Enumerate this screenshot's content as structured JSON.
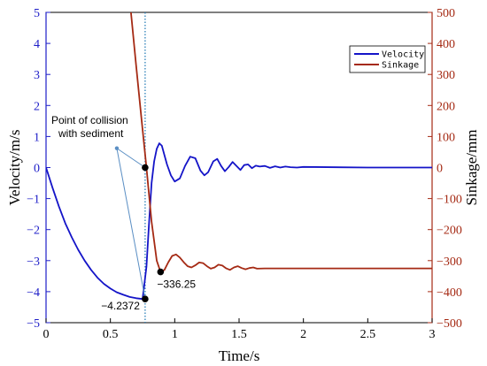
{
  "chart_data": {
    "type": "line",
    "xlabel": "Time/s",
    "ylabel_left": "Velocity/m/s",
    "ylabel_right": "Sinkage/mm",
    "xlim": [
      0,
      3
    ],
    "ylim_left": [
      -5,
      5
    ],
    "ylim_right": [
      -500,
      500
    ],
    "x_ticks": [
      0,
      0.5,
      1,
      1.5,
      2,
      2.5,
      3
    ],
    "x_tick_labels": [
      "0",
      "0.5",
      "1",
      "1.5",
      "2",
      "2.5",
      "3"
    ],
    "y_left_ticks": [
      -5,
      -4,
      -3,
      -2,
      -1,
      0,
      1,
      2,
      3,
      4,
      5
    ],
    "y_left_tick_labels": [
      "−5",
      "−4",
      "−3",
      "−2",
      "−1",
      "0",
      "1",
      "2",
      "3",
      "4",
      "5"
    ],
    "y_right_ticks": [
      -500,
      -400,
      -300,
      -200,
      -100,
      0,
      100,
      200,
      300,
      400,
      500
    ],
    "y_right_tick_labels": [
      "−500",
      "−400",
      "−300",
      "−200",
      "−100",
      "0",
      "100",
      "200",
      "300",
      "400",
      "500"
    ],
    "grid": false,
    "legend_position": "top-right",
    "series": [
      {
        "name": "Velocity",
        "color": "#1414c8",
        "axis": "left",
        "x": [
          0,
          0.05,
          0.1,
          0.15,
          0.2,
          0.25,
          0.3,
          0.35,
          0.4,
          0.45,
          0.5,
          0.55,
          0.6,
          0.65,
          0.7,
          0.75,
          0.78,
          0.8,
          0.82,
          0.84,
          0.86,
          0.88,
          0.9,
          0.92,
          0.94,
          0.97,
          1.0,
          1.04,
          1.08,
          1.12,
          1.16,
          1.2,
          1.23,
          1.26,
          1.3,
          1.33,
          1.36,
          1.39,
          1.42,
          1.45,
          1.48,
          1.51,
          1.54,
          1.57,
          1.6,
          1.63,
          1.66,
          1.7,
          1.74,
          1.78,
          1.82,
          1.86,
          1.9,
          1.95,
          2.0,
          2.5,
          3.0
        ],
        "y": [
          0,
          -0.65,
          -1.25,
          -1.8,
          -2.25,
          -2.65,
          -3.0,
          -3.3,
          -3.55,
          -3.75,
          -3.9,
          -4.02,
          -4.1,
          -4.17,
          -4.21,
          -4.237,
          -3.2,
          -1.8,
          -0.5,
          0.2,
          0.6,
          0.78,
          0.7,
          0.4,
          0.1,
          -0.25,
          -0.45,
          -0.35,
          0.05,
          0.35,
          0.3,
          -0.1,
          -0.25,
          -0.15,
          0.2,
          0.28,
          0.05,
          -0.12,
          0.02,
          0.18,
          0.05,
          -0.08,
          0.08,
          0.1,
          -0.02,
          0.06,
          0.03,
          0.05,
          -0.01,
          0.04,
          0.0,
          0.03,
          0.01,
          0.0,
          0.02,
          0.0,
          0.0
        ]
      },
      {
        "name": "Sinkage",
        "color": "#a52a14",
        "axis": "right",
        "x": [
          0.66,
          0.7,
          0.74,
          0.78,
          0.82,
          0.86,
          0.89,
          0.92,
          0.95,
          0.98,
          1.01,
          1.04,
          1.07,
          1.1,
          1.13,
          1.16,
          1.19,
          1.22,
          1.25,
          1.28,
          1.31,
          1.34,
          1.37,
          1.4,
          1.43,
          1.46,
          1.49,
          1.52,
          1.55,
          1.58,
          1.61,
          1.64,
          1.7,
          1.8,
          2.0,
          2.5,
          3.0
        ],
        "y": [
          500,
          330,
          165,
          0,
          -175,
          -300,
          -336.25,
          -330,
          -305,
          -285,
          -280,
          -290,
          -305,
          -318,
          -322,
          -315,
          -306,
          -308,
          -318,
          -326,
          -322,
          -313,
          -316,
          -325,
          -330,
          -322,
          -318,
          -324,
          -328,
          -324,
          -322,
          -326,
          -325,
          -325,
          -325,
          -325,
          -325
        ]
      }
    ],
    "markers": [
      {
        "x": 0.77,
        "y": -4.2372,
        "axis": "left",
        "label": "−4.2372"
      },
      {
        "x": 0.77,
        "y": 0,
        "axis": "left",
        "label": ""
      },
      {
        "x": 0.89,
        "y": -336.25,
        "axis": "right",
        "label": "−336.25"
      }
    ],
    "annotation": {
      "text_lines": [
        "Point of collision",
        "with sediment"
      ],
      "anchor": {
        "x": 0.55,
        "y": 0.62
      },
      "targets": [
        {
          "x": 0.77,
          "y": -4.2372
        },
        {
          "x": 0.77,
          "y": 0
        }
      ]
    },
    "vertical_line_x": 0.77
  }
}
